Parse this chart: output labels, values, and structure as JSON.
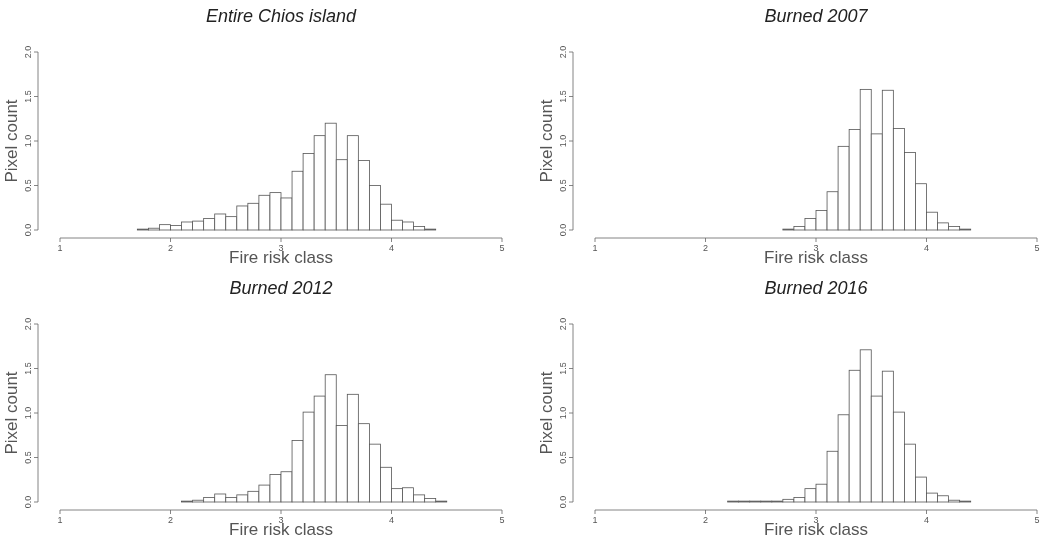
{
  "chart_data": [
    {
      "type": "histogram",
      "title": "Entire Chios island",
      "xlabel": "Fire risk class",
      "ylabel": "Pixel count",
      "bins": [
        1,
        1.1,
        1.2,
        1.3,
        1.4,
        1.5,
        1.6,
        1.7,
        1.8,
        1.9,
        2,
        2.1,
        2.2,
        2.3,
        2.4,
        2.5,
        2.6,
        2.7,
        2.8,
        2.9,
        3,
        3.1,
        3.2,
        3.3,
        3.4,
        3.5,
        3.6,
        3.7,
        3.8,
        3.9,
        4,
        4.1,
        4.2,
        4.3,
        4.4,
        4.5,
        4.6,
        4.7,
        4.8,
        4.9,
        5
      ],
      "values": [
        0,
        0,
        0,
        0,
        0,
        0,
        0,
        0.01,
        0.02,
        0.06,
        0.05,
        0.09,
        0.1,
        0.13,
        0.18,
        0.15,
        0.27,
        0.3,
        0.39,
        0.42,
        0.36,
        0.66,
        0.86,
        1.06,
        1.2,
        0.79,
        1.06,
        0.78,
        0.5,
        0.29,
        0.11,
        0.09,
        0.04,
        0.01,
        0,
        0,
        0,
        0,
        0,
        0
      ],
      "color": "#ffffff",
      "xlim": [
        1,
        5
      ],
      "xticks": [
        1,
        2,
        3,
        4,
        5
      ],
      "ylim": [
        0,
        2
      ],
      "yticks": [
        {
          "value": 0,
          "label": "0.0"
        },
        {
          "value": 0.5,
          "label": "0.5"
        },
        {
          "value": 1,
          "label": "1.0"
        },
        {
          "value": 1.5,
          "label": "1.5"
        },
        {
          "value": 2,
          "label": "2.0"
        }
      ]
    },
    {
      "type": "histogram",
      "title": "Burned 2007",
      "xlabel": "Fire risk class",
      "ylabel": "Pixel count",
      "bins": [
        2,
        2.1,
        2.2,
        2.3,
        2.4,
        2.5,
        2.6,
        2.7,
        2.8,
        2.9,
        3,
        3.1,
        3.2,
        3.3,
        3.4,
        3.5,
        3.6,
        3.7,
        3.8,
        3.9,
        4,
        4.1,
        4.2,
        4.3,
        4.4,
        4.5,
        4.6,
        4.7,
        4.8,
        4.9,
        5
      ],
      "values": [
        0,
        0,
        0,
        0,
        0,
        0,
        0,
        0.01,
        0.04,
        0.13,
        0.22,
        0.43,
        0.94,
        1.13,
        1.58,
        1.08,
        1.57,
        1.14,
        0.87,
        0.52,
        0.2,
        0.08,
        0.04,
        0.01,
        0,
        0,
        0,
        0,
        0,
        0
      ],
      "color": "#ffffff",
      "xlim": [
        1,
        5
      ],
      "xticks": [
        1,
        2,
        3,
        4,
        5
      ],
      "ylim": [
        0,
        2
      ],
      "yticks": [
        {
          "value": 0,
          "label": "0.0"
        },
        {
          "value": 0.5,
          "label": "0.5"
        },
        {
          "value": 1,
          "label": "1.0"
        },
        {
          "value": 1.5,
          "label": "1.5"
        },
        {
          "value": 2,
          "label": "2.0"
        }
      ]
    },
    {
      "type": "histogram",
      "title": "Burned 2012",
      "xlabel": "Fire risk class",
      "ylabel": "Pixel count",
      "bins": [
        1,
        1.1,
        1.2,
        1.3,
        1.4,
        1.5,
        1.6,
        1.7,
        1.8,
        1.9,
        2,
        2.1,
        2.2,
        2.3,
        2.4,
        2.5,
        2.6,
        2.7,
        2.8,
        2.9,
        3,
        3.1,
        3.2,
        3.3,
        3.4,
        3.5,
        3.6,
        3.7,
        3.8,
        3.9,
        4,
        4.1,
        4.2,
        4.3,
        4.4,
        4.5,
        4.6,
        4.7,
        4.8,
        4.9,
        5
      ],
      "values": [
        0,
        0,
        0,
        0,
        0,
        0,
        0,
        0,
        0,
        0,
        0,
        0.01,
        0.02,
        0.05,
        0.09,
        0.05,
        0.08,
        0.12,
        0.19,
        0.31,
        0.34,
        0.69,
        1.01,
        1.19,
        1.43,
        0.86,
        1.21,
        0.88,
        0.65,
        0.39,
        0.15,
        0.16,
        0.08,
        0.04,
        0.01,
        0,
        0,
        0,
        0,
        0
      ],
      "color": "#ffffff",
      "xlim": [
        1,
        5
      ],
      "xticks": [
        1,
        2,
        3,
        4,
        5
      ],
      "ylim": [
        0,
        2
      ],
      "yticks": [
        {
          "value": 0,
          "label": "0.0"
        },
        {
          "value": 0.5,
          "label": "0.5"
        },
        {
          "value": 1,
          "label": "1.0"
        },
        {
          "value": 1.5,
          "label": "1.5"
        },
        {
          "value": 2,
          "label": "2.0"
        }
      ]
    },
    {
      "type": "histogram",
      "title": "Burned 2016",
      "xlabel": "Fire risk class",
      "ylabel": "Pixel count",
      "bins": [
        2,
        2.1,
        2.2,
        2.3,
        2.4,
        2.5,
        2.6,
        2.7,
        2.8,
        2.9,
        3,
        3.1,
        3.2,
        3.3,
        3.4,
        3.5,
        3.6,
        3.7,
        3.8,
        3.9,
        4,
        4.1,
        4.2,
        4.3,
        4.4,
        4.5,
        4.6,
        4.7,
        4.8,
        4.9,
        5
      ],
      "values": [
        0,
        0,
        0.01,
        0.01,
        0.01,
        0.01,
        0.01,
        0.03,
        0.05,
        0.15,
        0.2,
        0.57,
        0.98,
        1.48,
        1.71,
        1.19,
        1.47,
        1.01,
        0.65,
        0.28,
        0.1,
        0.07,
        0.02,
        0.01,
        0,
        0,
        0,
        0,
        0,
        0
      ],
      "color": "#ffffff",
      "xlim": [
        1,
        5
      ],
      "xticks": [
        1,
        2,
        3,
        4,
        5
      ],
      "ylim": [
        0,
        2
      ],
      "yticks": [
        {
          "value": 0,
          "label": "0.0"
        },
        {
          "value": 0.5,
          "label": "0.5"
        },
        {
          "value": 1,
          "label": "1.0"
        },
        {
          "value": 1.5,
          "label": "1.5"
        },
        {
          "value": 2,
          "label": "2.0"
        }
      ]
    }
  ]
}
